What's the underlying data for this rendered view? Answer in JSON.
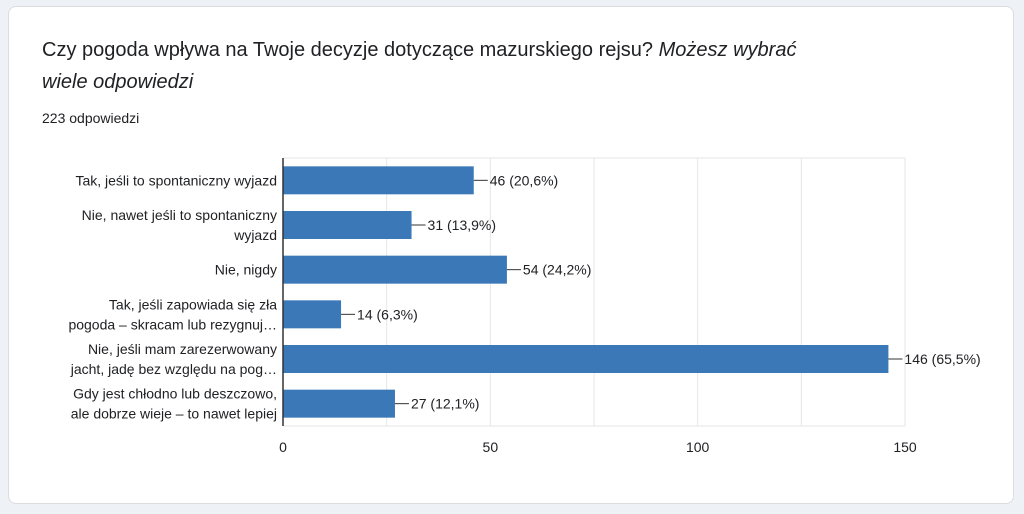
{
  "question": {
    "title": "Czy pogoda wpływa na Twoje decyzje dotyczące mazurskiego rejsu?",
    "subtitle": "Możesz wybrać wiele odpowiedzi",
    "response_count": "223 odpowiedzi"
  },
  "colors": {
    "bar": "#3a78b8",
    "grid": "#e6e6e6",
    "axis": "#333333",
    "text": "#202124"
  },
  "chart_data": {
    "type": "bar",
    "orientation": "horizontal",
    "categories": [
      [
        "Tak, jeśli to spontaniczny wyjazd"
      ],
      [
        "Nie, nawet jeśli to spontaniczny",
        "wyjazd"
      ],
      [
        "Nie, nigdy"
      ],
      [
        "Tak, jeśli zapowiada się zła",
        "pogoda – skracam lub rezygnuj…"
      ],
      [
        "Nie, jeśli mam zarezerwowany",
        "jacht, jadę bez względu na pog…"
      ],
      [
        "Gdy jest chłodno lub deszczowo,",
        "ale dobrze wieje – to nawet lepiej"
      ]
    ],
    "values": [
      46,
      31,
      54,
      14,
      146,
      27
    ],
    "data_labels": [
      "46 (20,6%)",
      "31 (13,9%)",
      "54 (24,2%)",
      "14 (6,3%)",
      "146 (65,5%)",
      "27 (12,1%)"
    ],
    "xlim": [
      0,
      150
    ],
    "xticks": [
      0,
      50,
      100,
      150
    ],
    "grid": true
  }
}
